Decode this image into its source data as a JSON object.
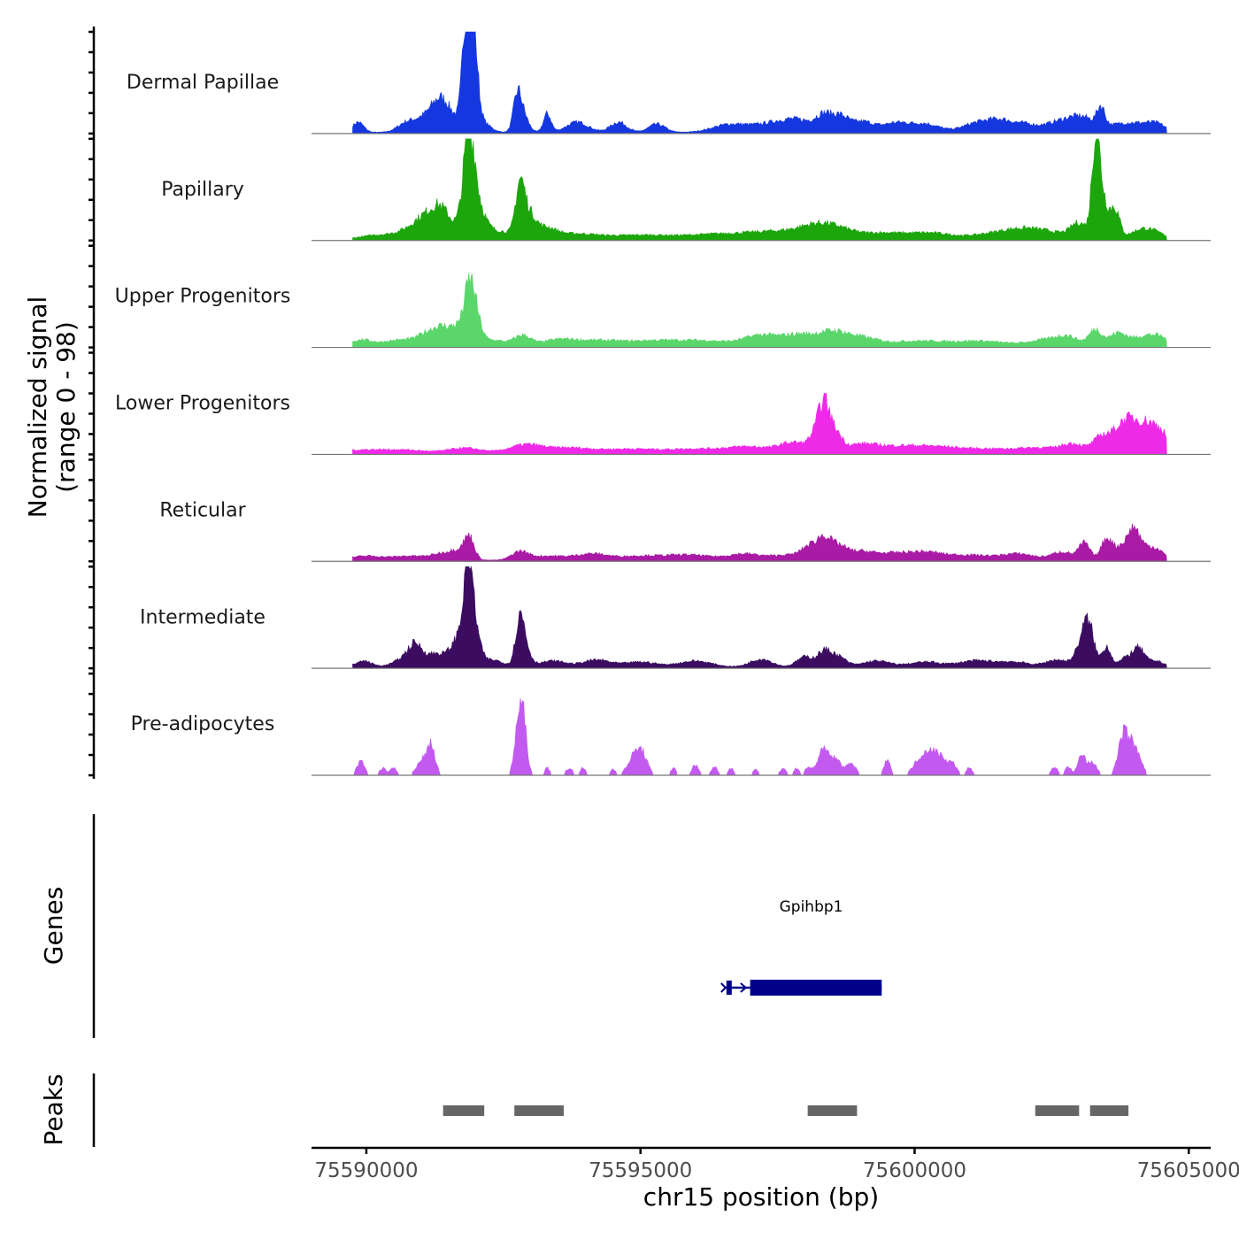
{
  "chart_data": {
    "type": "area",
    "title": "",
    "ylabel_line1": "Normalized signal",
    "ylabel_line2": "(range 0 - 98)",
    "ylim": [
      0,
      98
    ],
    "xlabel": "chr15 position (bp)",
    "xlim": [
      75589000,
      75605400
    ],
    "x_ticks": [
      75590000,
      75595000,
      75600000,
      75605000
    ],
    "x_tick_labels": [
      "75590000",
      "75595000",
      "75600000",
      "75605000"
    ],
    "data_range": [
      75589750,
      75604600
    ],
    "tracks": [
      {
        "name": "Dermal Papillae",
        "color": "#1537e0",
        "sparse": false,
        "peaks": [
          [
            75589850,
            10,
            100
          ],
          [
            75590700,
            6,
            150
          ],
          [
            75591100,
            15,
            250
          ],
          [
            75591350,
            18,
            150
          ],
          [
            75591550,
            12,
            200
          ],
          [
            75591800,
            35,
            60
          ],
          [
            75591870,
            92,
            90
          ],
          [
            75591950,
            60,
            80
          ],
          [
            75592100,
            10,
            150
          ],
          [
            75592750,
            30,
            70
          ],
          [
            75592850,
            18,
            100
          ],
          [
            75593300,
            18,
            70
          ],
          [
            75593850,
            10,
            200
          ],
          [
            75594600,
            10,
            150
          ],
          [
            75595300,
            8,
            150
          ],
          [
            75596600,
            7,
            300
          ],
          [
            75597400,
            8,
            400
          ],
          [
            75597900,
            9,
            300
          ],
          [
            75598350,
            14,
            150
          ],
          [
            75598650,
            14,
            150
          ],
          [
            75599050,
            10,
            200
          ],
          [
            75599650,
            9,
            250
          ],
          [
            75600200,
            8,
            250
          ],
          [
            75601200,
            10,
            300
          ],
          [
            75601600,
            8,
            200
          ],
          [
            75602000,
            7,
            200
          ],
          [
            75602650,
            10,
            300
          ],
          [
            75603100,
            12,
            250
          ],
          [
            75603400,
            18,
            70
          ],
          [
            75603800,
            8,
            250
          ],
          [
            75604200,
            6,
            200
          ],
          [
            75604450,
            6,
            150
          ]
        ]
      },
      {
        "name": "Papillary",
        "color": "#1ca60c",
        "sparse": false,
        "peaks": [
          [
            75590200,
            4,
            300
          ],
          [
            75590800,
            8,
            250
          ],
          [
            75591100,
            18,
            200
          ],
          [
            75591350,
            20,
            150
          ],
          [
            75591600,
            10,
            200
          ],
          [
            75591870,
            85,
            100
          ],
          [
            75592000,
            30,
            150
          ],
          [
            75592400,
            8,
            300
          ],
          [
            75592800,
            45,
            80
          ],
          [
            75592950,
            22,
            120
          ],
          [
            75593250,
            10,
            200
          ],
          [
            75593800,
            5,
            400
          ],
          [
            75595000,
            4,
            600
          ],
          [
            75596500,
            5,
            600
          ],
          [
            75597600,
            7,
            500
          ],
          [
            75598200,
            9,
            300
          ],
          [
            75598600,
            8,
            300
          ],
          [
            75599400,
            6,
            400
          ],
          [
            75600300,
            6,
            400
          ],
          [
            75601500,
            6,
            400
          ],
          [
            75602000,
            7,
            300
          ],
          [
            75602500,
            6,
            300
          ],
          [
            75603000,
            15,
            150
          ],
          [
            75603300,
            88,
            70
          ],
          [
            75603420,
            40,
            90
          ],
          [
            75603650,
            30,
            90
          ],
          [
            75604150,
            10,
            200
          ],
          [
            75604450,
            4,
            150
          ]
        ]
      },
      {
        "name": "Upper Progenitors",
        "color": "#5ad66b",
        "sparse": false,
        "peaks": [
          [
            75589900,
            6,
            200
          ],
          [
            75590600,
            6,
            300
          ],
          [
            75591150,
            12,
            200
          ],
          [
            75591400,
            12,
            150
          ],
          [
            75591700,
            18,
            150
          ],
          [
            75591880,
            45,
            90
          ],
          [
            75592000,
            22,
            100
          ],
          [
            75592300,
            6,
            250
          ],
          [
            75592850,
            10,
            150
          ],
          [
            75593500,
            6,
            300
          ],
          [
            75594200,
            5,
            400
          ],
          [
            75595200,
            5,
            500
          ],
          [
            75596200,
            5,
            500
          ],
          [
            75597200,
            10,
            300
          ],
          [
            75597900,
            11,
            300
          ],
          [
            75598500,
            12,
            250
          ],
          [
            75599000,
            8,
            300
          ],
          [
            75600000,
            5,
            500
          ],
          [
            75601200,
            5,
            500
          ],
          [
            75602400,
            6,
            300
          ],
          [
            75602800,
            8,
            200
          ],
          [
            75603300,
            16,
            120
          ],
          [
            75603700,
            12,
            150
          ],
          [
            75604200,
            10,
            250
          ],
          [
            75604500,
            5,
            150
          ]
        ]
      },
      {
        "name": "Lower Progenitors",
        "color": "#ef29e8",
        "sparse": false,
        "peaks": [
          [
            75589900,
            3,
            400
          ],
          [
            75590700,
            3,
            400
          ],
          [
            75591800,
            5,
            300
          ],
          [
            75592900,
            8,
            300
          ],
          [
            75593700,
            5,
            400
          ],
          [
            75594800,
            4,
            500
          ],
          [
            75596000,
            4,
            500
          ],
          [
            75597000,
            6,
            400
          ],
          [
            75597800,
            10,
            250
          ],
          [
            75598200,
            15,
            120
          ],
          [
            75598350,
            40,
            100
          ],
          [
            75598550,
            18,
            120
          ],
          [
            75599000,
            8,
            300
          ],
          [
            75599700,
            6,
            400
          ],
          [
            75600400,
            5,
            400
          ],
          [
            75601300,
            4,
            500
          ],
          [
            75602300,
            5,
            400
          ],
          [
            75602900,
            8,
            200
          ],
          [
            75603400,
            14,
            150
          ],
          [
            75603800,
            25,
            200
          ],
          [
            75604100,
            20,
            200
          ],
          [
            75604350,
            18,
            150
          ],
          [
            75604550,
            12,
            100
          ]
        ]
      },
      {
        "name": "Reticular",
        "color": "#a91aa5",
        "sparse": false,
        "peaks": [
          [
            75590000,
            4,
            300
          ],
          [
            75590800,
            4,
            300
          ],
          [
            75591400,
            6,
            200
          ],
          [
            75591700,
            8,
            150
          ],
          [
            75591880,
            20,
            90
          ],
          [
            75592800,
            8,
            150
          ],
          [
            75593300,
            4,
            300
          ],
          [
            75594100,
            6,
            300
          ],
          [
            75595000,
            4,
            400
          ],
          [
            75595900,
            5,
            400
          ],
          [
            75596900,
            6,
            300
          ],
          [
            75597700,
            5,
            300
          ],
          [
            75598100,
            12,
            150
          ],
          [
            75598350,
            18,
            120
          ],
          [
            75598600,
            12,
            150
          ],
          [
            75599000,
            8,
            250
          ],
          [
            75599600,
            6,
            300
          ],
          [
            75600200,
            7,
            300
          ],
          [
            75601000,
            5,
            400
          ],
          [
            75601900,
            6,
            300
          ],
          [
            75602700,
            8,
            200
          ],
          [
            75603100,
            16,
            100
          ],
          [
            75603500,
            20,
            100
          ],
          [
            75603800,
            14,
            150
          ],
          [
            75604000,
            22,
            100
          ],
          [
            75604200,
            12,
            150
          ],
          [
            75604450,
            8,
            120
          ]
        ]
      },
      {
        "name": "Intermediate",
        "color": "#3b0c60",
        "sparse": false,
        "peaks": [
          [
            75589950,
            6,
            150
          ],
          [
            75590700,
            8,
            200
          ],
          [
            75590900,
            18,
            130
          ],
          [
            75591250,
            12,
            150
          ],
          [
            75591600,
            15,
            150
          ],
          [
            75591750,
            20,
            120
          ],
          [
            75591860,
            80,
            80
          ],
          [
            75591980,
            30,
            100
          ],
          [
            75592300,
            7,
            200
          ],
          [
            75592800,
            42,
            80
          ],
          [
            75592900,
            15,
            100
          ],
          [
            75593400,
            6,
            250
          ],
          [
            75594200,
            7,
            250
          ],
          [
            75595000,
            5,
            300
          ],
          [
            75596000,
            6,
            300
          ],
          [
            75597200,
            8,
            200
          ],
          [
            75598000,
            10,
            150
          ],
          [
            75598350,
            14,
            120
          ],
          [
            75598600,
            10,
            150
          ],
          [
            75599300,
            6,
            250
          ],
          [
            75600200,
            5,
            300
          ],
          [
            75601100,
            6,
            300
          ],
          [
            75601800,
            5,
            300
          ],
          [
            75602600,
            7,
            200
          ],
          [
            75603050,
            20,
            120
          ],
          [
            75603180,
            34,
            100
          ],
          [
            75603500,
            20,
            80
          ],
          [
            75603900,
            10,
            150
          ],
          [
            75604100,
            14,
            100
          ],
          [
            75604400,
            6,
            150
          ]
        ]
      },
      {
        "name": "Pre-adipocytes",
        "color": "#c35af0",
        "sparse": true,
        "peaks": [
          [
            75589900,
            14,
            70
          ],
          [
            75590300,
            7,
            60
          ],
          [
            75590500,
            7,
            60
          ],
          [
            75590950,
            8,
            80
          ],
          [
            75591100,
            16,
            80
          ],
          [
            75591200,
            22,
            70
          ],
          [
            75592780,
            55,
            70
          ],
          [
            75592880,
            38,
            60
          ],
          [
            75593300,
            7,
            50
          ],
          [
            75593700,
            7,
            60
          ],
          [
            75593950,
            7,
            50
          ],
          [
            75594500,
            6,
            50
          ],
          [
            75594900,
            20,
            120
          ],
          [
            75595050,
            14,
            90
          ],
          [
            75595600,
            7,
            50
          ],
          [
            75596000,
            10,
            60
          ],
          [
            75596350,
            8,
            60
          ],
          [
            75596650,
            7,
            50
          ],
          [
            75597100,
            6,
            50
          ],
          [
            75597600,
            7,
            60
          ],
          [
            75597850,
            7,
            50
          ],
          [
            75598050,
            7,
            50
          ],
          [
            75598350,
            25,
            120
          ],
          [
            75598600,
            12,
            90
          ],
          [
            75598850,
            12,
            80
          ],
          [
            75599500,
            14,
            60
          ],
          [
            75600100,
            16,
            120
          ],
          [
            75600300,
            20,
            100
          ],
          [
            75600500,
            16,
            100
          ],
          [
            75600700,
            10,
            80
          ],
          [
            75601000,
            8,
            50
          ],
          [
            75602550,
            8,
            60
          ],
          [
            75602800,
            8,
            60
          ],
          [
            75603050,
            20,
            70
          ],
          [
            75603250,
            12,
            80
          ],
          [
            75603800,
            35,
            90
          ],
          [
            75603950,
            25,
            90
          ],
          [
            75604100,
            15,
            70
          ]
        ]
      }
    ],
    "genes_label": "Genes",
    "gene": {
      "name": "Gpihbp1",
      "start": 75596600,
      "end": 75599400,
      "cds_start": 75597000,
      "strand": "+",
      "color": "#00008b"
    },
    "peaks_label": "Peaks",
    "peak_regions": [
      [
        75591400,
        75592150
      ],
      [
        75592700,
        75593600
      ],
      [
        75598050,
        75598950
      ],
      [
        75602200,
        75603000
      ],
      [
        75603200,
        75603900
      ]
    ]
  }
}
